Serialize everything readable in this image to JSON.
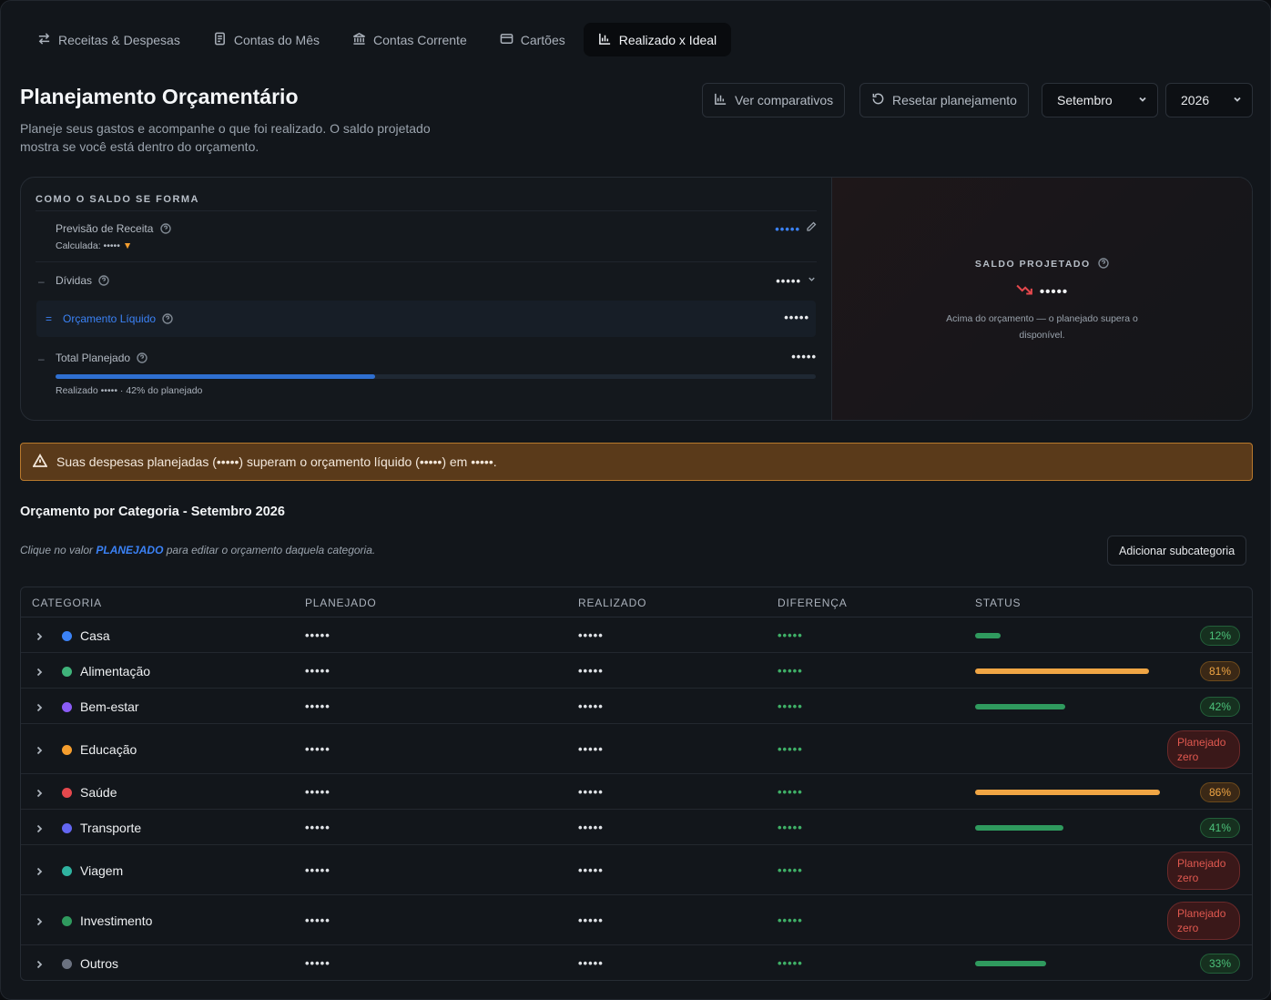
{
  "tabs": [
    {
      "label": "Receitas & Despesas",
      "icon": "arrows-exchange-icon"
    },
    {
      "label": "Contas do Mês",
      "icon": "document-icon"
    },
    {
      "label": "Contas Corrente",
      "icon": "bank-icon"
    },
    {
      "label": "Cartões",
      "icon": "credit-card-icon"
    },
    {
      "label": "Realizado x Ideal",
      "icon": "bar-chart-icon",
      "active": true
    }
  ],
  "header": {
    "title": "Planejamento Orçamentário",
    "subtitle": "Planeje seus gastos e acompanhe o que foi realizado. O saldo projetado mostra se você está dentro do orçamento.",
    "compare_label": "Ver comparativos",
    "reset_label": "Resetar planejamento",
    "month": "Setembro",
    "year": "2026"
  },
  "saldo": {
    "section_label": "COMO O SALDO SE FORMA",
    "receita_label": "Previsão de Receita",
    "receita_value": "•••••",
    "calculada_label": "Calculada: •••••",
    "calculada_marker": "▼",
    "minus_sign": "–",
    "equals_sign": "=",
    "dividas_label": "Dívidas",
    "dividas_value": "•••••",
    "liquido_label": "Orçamento Líquido",
    "liquido_value": "•••••",
    "total_label": "Total Planejado",
    "total_value": "•••••",
    "realizado_text": "Realizado ••••• · 42% do planejado",
    "realizado_percent": 42,
    "projetado_label": "SALDO PROJETADO",
    "projetado_value": "•••••",
    "projetado_note": "Acima do orçamento — o planejado supera o disponível."
  },
  "warning": {
    "text": "Suas despesas planejadas (•••••) superam o orçamento líquido (•••••) em •••••."
  },
  "categorias": {
    "title": "Orçamento por Categoria - Setembro 2026",
    "hint_before": "Clique no valor ",
    "hint_highlight": "PLANEJADO",
    "hint_after": " para editar o orçamento daquela categoria.",
    "add_label": "Adicionar subcategoria",
    "columns": [
      "CATEGORIA",
      "PLANEJADO",
      "REALIZADO",
      "DIFERENÇA",
      "STATUS"
    ],
    "rows": [
      {
        "name": "Casa",
        "color": "#3b82f6",
        "planejado": "•••••",
        "realizado": "•••••",
        "diferenca": "•••••",
        "percent": 12,
        "status": "12%",
        "kind": "green"
      },
      {
        "name": "Alimentação",
        "color": "#3fb37a",
        "planejado": "•••••",
        "realizado": "•••••",
        "diferenca": "•••••",
        "percent": 81,
        "status": "81%",
        "kind": "orange"
      },
      {
        "name": "Bem-estar",
        "color": "#8b5cf6",
        "planejado": "•••••",
        "realizado": "•••••",
        "diferenca": "•••••",
        "percent": 42,
        "status": "42%",
        "kind": "green"
      },
      {
        "name": "Educação",
        "color": "#f59e2e",
        "planejado": "•••••",
        "realizado": "•••••",
        "diferenca": "•••••",
        "percent": 0,
        "status": "Planejado zero",
        "kind": "red"
      },
      {
        "name": "Saúde",
        "color": "#e5484d",
        "planejado": "•••••",
        "realizado": "•••••",
        "diferenca": "•••••",
        "percent": 86,
        "status": "86%",
        "kind": "orange"
      },
      {
        "name": "Transporte",
        "color": "#6366f1",
        "planejado": "•••••",
        "realizado": "•••••",
        "diferenca": "•••••",
        "percent": 41,
        "status": "41%",
        "kind": "green"
      },
      {
        "name": "Viagem",
        "color": "#2fb3a0",
        "planejado": "•••••",
        "realizado": "•••••",
        "diferenca": "•••••",
        "percent": 0,
        "status": "Planejado zero",
        "kind": "red"
      },
      {
        "name": "Investimento",
        "color": "#2f9a5e",
        "planejado": "•••••",
        "realizado": "•••••",
        "diferenca": "•••••",
        "percent": 0,
        "status": "Planejado zero",
        "kind": "red"
      },
      {
        "name": "Outros",
        "color": "#6b7280",
        "planejado": "•••••",
        "realizado": "•••••",
        "diferenca": "•••••",
        "percent": 33,
        "status": "33%",
        "kind": "green"
      }
    ]
  },
  "colors": {
    "accent_blue": "#3b82f6",
    "success_green": "#3fb067",
    "warning_orange": "#f0a544",
    "danger_red": "#e0584f"
  }
}
